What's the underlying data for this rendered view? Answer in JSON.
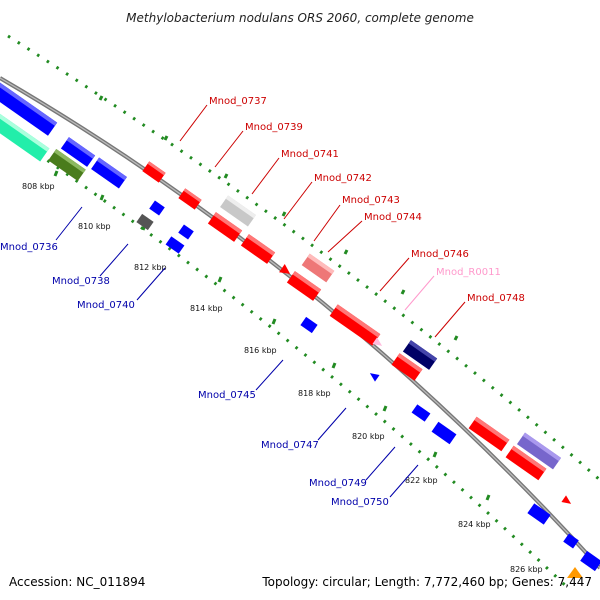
{
  "title": "Methylobacterium nodulans ORS 2060, complete genome",
  "accession": "Accession: NC_011894",
  "topology": "Topology: circular; Length: 7,772,460 bp; Genes: 7,447",
  "colors": {
    "forward_gene": "#ff0000",
    "reverse_gene": "#0000ff",
    "backbone": "#888888",
    "gc_dots": "#228b22",
    "label_forward": "#cc0000",
    "label_reverse": "#0000aa",
    "label_rna": "#ff99cc"
  },
  "ticks": [
    {
      "label": "808 kbp"
    },
    {
      "label": "810 kbp"
    },
    {
      "label": "812 kbp"
    },
    {
      "label": "814 kbp"
    },
    {
      "label": "816 kbp"
    },
    {
      "label": "818 kbp"
    },
    {
      "label": "820 kbp"
    },
    {
      "label": "822 kbp"
    },
    {
      "label": "824 kbp"
    },
    {
      "label": "826 kbp"
    }
  ],
  "gene_labels": [
    {
      "text": "Mnod_0737",
      "strand": "forward"
    },
    {
      "text": "Mnod_0739",
      "strand": "forward"
    },
    {
      "text": "Mnod_0741",
      "strand": "forward"
    },
    {
      "text": "Mnod_0742",
      "strand": "forward"
    },
    {
      "text": "Mnod_0743",
      "strand": "forward"
    },
    {
      "text": "Mnod_0744",
      "strand": "forward"
    },
    {
      "text": "Mnod_0746",
      "strand": "forward"
    },
    {
      "text": "Mnod_R0011",
      "strand": "rna"
    },
    {
      "text": "Mnod_0748",
      "strand": "forward"
    },
    {
      "text": "Mnod_0736",
      "strand": "reverse"
    },
    {
      "text": "Mnod_0738",
      "strand": "reverse"
    },
    {
      "text": "Mnod_0740",
      "strand": "reverse"
    },
    {
      "text": "Mnod_0745",
      "strand": "reverse"
    },
    {
      "text": "Mnod_0747",
      "strand": "reverse"
    },
    {
      "text": "Mnod_0749",
      "strand": "reverse"
    },
    {
      "text": "Mnod_0750",
      "strand": "reverse"
    }
  ]
}
